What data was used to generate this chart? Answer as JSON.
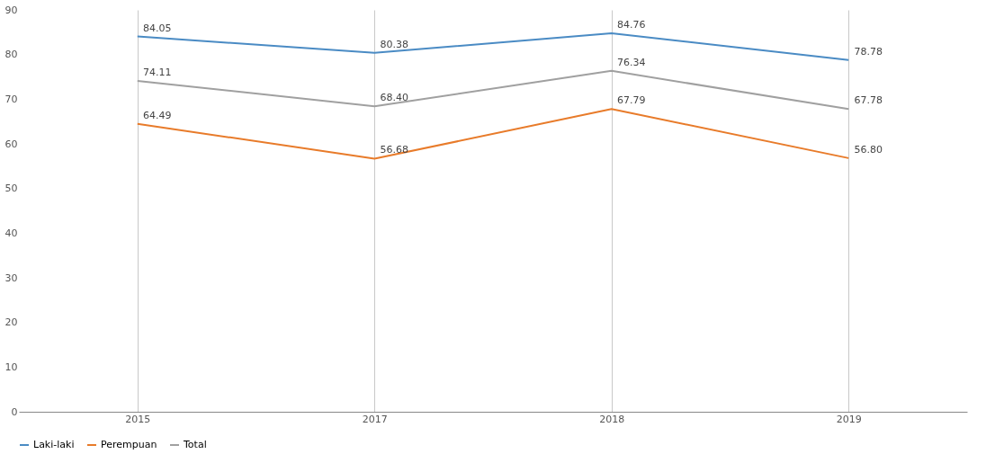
{
  "chart_data": {
    "type": "line",
    "categories": [
      "2015",
      "2017",
      "2018",
      "2019"
    ],
    "series": [
      {
        "name": "Laki-laki",
        "color": "#4a8bc4",
        "values": [
          84.05,
          80.38,
          84.76,
          78.78
        ],
        "value_labels": [
          "84.05",
          "80.38",
          "84.76",
          "78.78"
        ]
      },
      {
        "name": "Perempuan",
        "color": "#e87b2a",
        "values": [
          64.49,
          56.68,
          67.79,
          56.8
        ],
        "value_labels": [
          "64.49",
          "56.68",
          "67.79",
          "56.80"
        ]
      },
      {
        "name": "Total",
        "color": "#a0a0a0",
        "values": [
          74.11,
          68.4,
          76.34,
          67.78
        ],
        "value_labels": [
          "74.11",
          "68.40",
          "76.34",
          "67.78"
        ]
      }
    ],
    "ylim": [
      0,
      90
    ],
    "yticks": [
      0,
      10,
      20,
      30,
      40,
      50,
      60,
      70,
      80,
      90
    ],
    "grid": "x",
    "legend": "bottom",
    "marker": "none",
    "line_style": "solid"
  }
}
